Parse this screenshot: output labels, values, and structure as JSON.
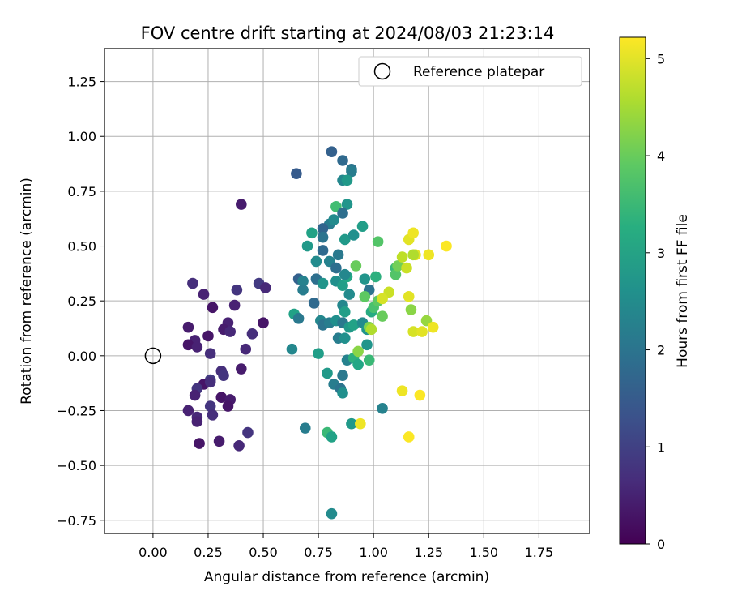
{
  "chart_data": {
    "type": "scatter",
    "title": "FOV centre drift starting at 2024/08/03 21:23:14",
    "xlabel": "Angular distance from reference (arcmin)",
    "ylabel": "Rotation from reference (arcmin)",
    "xlim": [
      -0.22,
      1.98
    ],
    "ylim": [
      -0.81,
      1.4
    ],
    "xticks": [
      "0.00",
      "0.25",
      "0.50",
      "0.75",
      "1.00",
      "1.25",
      "1.50",
      "1.75"
    ],
    "xtick_values": [
      0,
      0.25,
      0.5,
      0.75,
      1.0,
      1.25,
      1.5,
      1.75
    ],
    "yticks": [
      "−0.75",
      "−0.50",
      "−0.25",
      "0.00",
      "0.25",
      "0.50",
      "0.75",
      "1.00",
      "1.25"
    ],
    "ytick_values": [
      -0.75,
      -0.5,
      -0.25,
      0,
      0.25,
      0.5,
      0.75,
      1.0,
      1.25
    ],
    "grid": true,
    "legend": {
      "position": "top-right",
      "entries": [
        "Reference platepar"
      ]
    },
    "reference_point": {
      "x": 0.0,
      "y": 0.0
    },
    "colorbar": {
      "label": "Hours from first FF file",
      "range": [
        0,
        5.22
      ],
      "ticks": [
        "0",
        "1",
        "2",
        "3",
        "4",
        "5"
      ],
      "tick_values": [
        0,
        1,
        2,
        3,
        4,
        5
      ],
      "colormap": "viridis"
    },
    "series": [
      {
        "points": [
          {
            "x": 0.4,
            "y": 0.69,
            "c": 0.4
          },
          {
            "x": 0.18,
            "y": 0.33,
            "c": 0.7
          },
          {
            "x": 0.23,
            "y": 0.28,
            "c": 0.5
          },
          {
            "x": 0.38,
            "y": 0.3,
            "c": 0.8
          },
          {
            "x": 0.27,
            "y": 0.22,
            "c": 0.3
          },
          {
            "x": 0.37,
            "y": 0.23,
            "c": 0.5
          },
          {
            "x": 0.48,
            "y": 0.33,
            "c": 0.9
          },
          {
            "x": 0.51,
            "y": 0.31,
            "c": 0.6
          },
          {
            "x": 0.16,
            "y": 0.13,
            "c": 0.4
          },
          {
            "x": 0.34,
            "y": 0.15,
            "c": 0.5
          },
          {
            "x": 0.5,
            "y": 0.15,
            "c": 0.3
          },
          {
            "x": 0.19,
            "y": 0.07,
            "c": 0.5
          },
          {
            "x": 0.25,
            "y": 0.09,
            "c": 0.3
          },
          {
            "x": 0.32,
            "y": 0.12,
            "c": 0.4
          },
          {
            "x": 0.35,
            "y": 0.11,
            "c": 0.6
          },
          {
            "x": 0.45,
            "y": 0.1,
            "c": 0.7
          },
          {
            "x": 0.16,
            "y": 0.05,
            "c": 0.3
          },
          {
            "x": 0.2,
            "y": 0.04,
            "c": 0.5
          },
          {
            "x": 0.42,
            "y": 0.03,
            "c": 0.6
          },
          {
            "x": 0.26,
            "y": 0.01,
            "c": 0.7
          },
          {
            "x": 0.4,
            "y": -0.06,
            "c": 0.4
          },
          {
            "x": 0.31,
            "y": -0.07,
            "c": 0.7
          },
          {
            "x": 0.32,
            "y": -0.09,
            "c": 0.8
          },
          {
            "x": 0.26,
            "y": -0.11,
            "c": 0.9
          },
          {
            "x": 0.23,
            "y": -0.13,
            "c": 0.3
          },
          {
            "x": 0.26,
            "y": -0.12,
            "c": 0.7
          },
          {
            "x": 0.2,
            "y": -0.15,
            "c": 0.8
          },
          {
            "x": 0.19,
            "y": -0.18,
            "c": 0.5
          },
          {
            "x": 0.31,
            "y": -0.19,
            "c": 0.3
          },
          {
            "x": 0.35,
            "y": -0.2,
            "c": 0.4
          },
          {
            "x": 0.26,
            "y": -0.23,
            "c": 0.8
          },
          {
            "x": 0.34,
            "y": -0.23,
            "c": 0.3
          },
          {
            "x": 0.16,
            "y": -0.25,
            "c": 0.5
          },
          {
            "x": 0.27,
            "y": -0.27,
            "c": 0.7
          },
          {
            "x": 0.2,
            "y": -0.28,
            "c": 0.6
          },
          {
            "x": 0.2,
            "y": -0.3,
            "c": 0.5
          },
          {
            "x": 0.43,
            "y": -0.35,
            "c": 0.8
          },
          {
            "x": 0.21,
            "y": -0.4,
            "c": 0.3
          },
          {
            "x": 0.3,
            "y": -0.39,
            "c": 0.4
          },
          {
            "x": 0.39,
            "y": -0.41,
            "c": 0.6
          },
          {
            "x": 0.65,
            "y": 0.83,
            "c": 1.5
          },
          {
            "x": 0.81,
            "y": 0.93,
            "c": 1.6
          },
          {
            "x": 0.86,
            "y": 0.89,
            "c": 1.8
          },
          {
            "x": 0.9,
            "y": 0.85,
            "c": 2.0
          },
          {
            "x": 0.9,
            "y": 0.84,
            "c": 2.2
          },
          {
            "x": 0.86,
            "y": 0.8,
            "c": 2.4
          },
          {
            "x": 0.88,
            "y": 0.8,
            "c": 2.8
          },
          {
            "x": 0.83,
            "y": 0.68,
            "c": 3.6
          },
          {
            "x": 0.88,
            "y": 0.69,
            "c": 2.7
          },
          {
            "x": 0.86,
            "y": 0.65,
            "c": 1.9
          },
          {
            "x": 0.8,
            "y": 0.6,
            "c": 2.2
          },
          {
            "x": 0.82,
            "y": 0.62,
            "c": 2.5
          },
          {
            "x": 0.77,
            "y": 0.58,
            "c": 1.7
          },
          {
            "x": 0.72,
            "y": 0.56,
            "c": 3.0
          },
          {
            "x": 0.77,
            "y": 0.54,
            "c": 2.0
          },
          {
            "x": 0.87,
            "y": 0.53,
            "c": 2.8
          },
          {
            "x": 0.91,
            "y": 0.55,
            "c": 2.6
          },
          {
            "x": 0.95,
            "y": 0.59,
            "c": 2.9
          },
          {
            "x": 0.7,
            "y": 0.5,
            "c": 2.8
          },
          {
            "x": 0.77,
            "y": 0.48,
            "c": 1.8
          },
          {
            "x": 0.84,
            "y": 0.46,
            "c": 2.1
          },
          {
            "x": 0.74,
            "y": 0.43,
            "c": 2.5
          },
          {
            "x": 0.8,
            "y": 0.43,
            "c": 2.3
          },
          {
            "x": 0.83,
            "y": 0.4,
            "c": 1.9
          },
          {
            "x": 0.66,
            "y": 0.35,
            "c": 1.6
          },
          {
            "x": 0.68,
            "y": 0.34,
            "c": 2.3
          },
          {
            "x": 0.74,
            "y": 0.35,
            "c": 1.9
          },
          {
            "x": 0.77,
            "y": 0.33,
            "c": 2.7
          },
          {
            "x": 0.83,
            "y": 0.34,
            "c": 2.6
          },
          {
            "x": 0.86,
            "y": 0.32,
            "c": 2.9
          },
          {
            "x": 0.88,
            "y": 0.36,
            "c": 3.1
          },
          {
            "x": 0.87,
            "y": 0.37,
            "c": 2.4
          },
          {
            "x": 0.96,
            "y": 0.35,
            "c": 2.7
          },
          {
            "x": 0.68,
            "y": 0.3,
            "c": 2.2
          },
          {
            "x": 0.89,
            "y": 0.28,
            "c": 2.5
          },
          {
            "x": 0.98,
            "y": 0.3,
            "c": 2.0
          },
          {
            "x": 0.73,
            "y": 0.24,
            "c": 1.8
          },
          {
            "x": 0.64,
            "y": 0.19,
            "c": 3.0
          },
          {
            "x": 0.66,
            "y": 0.17,
            "c": 2.1
          },
          {
            "x": 0.76,
            "y": 0.16,
            "c": 2.4
          },
          {
            "x": 0.77,
            "y": 0.14,
            "c": 2.0
          },
          {
            "x": 0.8,
            "y": 0.15,
            "c": 2.2
          },
          {
            "x": 0.83,
            "y": 0.16,
            "c": 2.6
          },
          {
            "x": 0.86,
            "y": 0.23,
            "c": 2.4
          },
          {
            "x": 0.87,
            "y": 0.2,
            "c": 2.9
          },
          {
            "x": 0.86,
            "y": 0.15,
            "c": 2.1
          },
          {
            "x": 0.89,
            "y": 0.13,
            "c": 2.8
          },
          {
            "x": 0.91,
            "y": 0.14,
            "c": 3.0
          },
          {
            "x": 0.95,
            "y": 0.15,
            "c": 2.5
          },
          {
            "x": 0.97,
            "y": 0.12,
            "c": 2.7
          },
          {
            "x": 0.99,
            "y": 0.2,
            "c": 3.2
          },
          {
            "x": 0.84,
            "y": 0.08,
            "c": 2.2
          },
          {
            "x": 0.87,
            "y": 0.08,
            "c": 2.6
          },
          {
            "x": 0.63,
            "y": 0.03,
            "c": 2.4
          },
          {
            "x": 0.75,
            "y": 0.01,
            "c": 2.9
          },
          {
            "x": 0.97,
            "y": 0.05,
            "c": 2.7
          },
          {
            "x": 0.88,
            "y": -0.02,
            "c": 2.3
          },
          {
            "x": 0.91,
            "y": -0.01,
            "c": 3.3
          },
          {
            "x": 0.93,
            "y": -0.04,
            "c": 3.1
          },
          {
            "x": 0.98,
            "y": -0.02,
            "c": 3.5
          },
          {
            "x": 0.79,
            "y": -0.08,
            "c": 2.8
          },
          {
            "x": 0.86,
            "y": -0.09,
            "c": 2.1
          },
          {
            "x": 0.82,
            "y": -0.13,
            "c": 2.2
          },
          {
            "x": 0.85,
            "y": -0.15,
            "c": 2.0
          },
          {
            "x": 0.86,
            "y": -0.17,
            "c": 2.6
          },
          {
            "x": 0.69,
            "y": -0.33,
            "c": 2.2
          },
          {
            "x": 0.79,
            "y": -0.35,
            "c": 3.5
          },
          {
            "x": 0.81,
            "y": -0.37,
            "c": 3.0
          },
          {
            "x": 0.9,
            "y": -0.31,
            "c": 2.8
          },
          {
            "x": 1.04,
            "y": -0.24,
            "c": 2.3
          },
          {
            "x": 0.81,
            "y": -0.72,
            "c": 2.5
          },
          {
            "x": 1.02,
            "y": 0.52,
            "c": 3.8
          },
          {
            "x": 0.92,
            "y": 0.41,
            "c": 4.0
          },
          {
            "x": 1.0,
            "y": 0.22,
            "c": 3.7
          },
          {
            "x": 1.02,
            "y": 0.25,
            "c": 3.9
          },
          {
            "x": 1.04,
            "y": 0.18,
            "c": 4.0
          },
          {
            "x": 0.98,
            "y": 0.13,
            "c": 4.2
          },
          {
            "x": 1.01,
            "y": 0.36,
            "c": 3.3
          },
          {
            "x": 1.1,
            "y": 0.4,
            "c": 3.5
          },
          {
            "x": 1.1,
            "y": 0.37,
            "c": 3.8
          },
          {
            "x": 1.11,
            "y": 0.41,
            "c": 4.1
          },
          {
            "x": 0.93,
            "y": 0.02,
            "c": 4.3
          },
          {
            "x": 0.96,
            "y": 0.27,
            "c": 3.9
          },
          {
            "x": 1.07,
            "y": 0.29,
            "c": 4.8
          },
          {
            "x": 1.04,
            "y": 0.26,
            "c": 4.9
          },
          {
            "x": 1.13,
            "y": 0.45,
            "c": 4.7
          },
          {
            "x": 1.15,
            "y": 0.4,
            "c": 4.8
          },
          {
            "x": 1.16,
            "y": 0.53,
            "c": 5.0
          },
          {
            "x": 1.18,
            "y": 0.56,
            "c": 5.1
          },
          {
            "x": 1.19,
            "y": 0.46,
            "c": 5.0
          },
          {
            "x": 1.18,
            "y": 0.46,
            "c": 4.6
          },
          {
            "x": 1.25,
            "y": 0.46,
            "c": 5.1
          },
          {
            "x": 1.33,
            "y": 0.5,
            "c": 5.2
          },
          {
            "x": 1.16,
            "y": 0.27,
            "c": 5.0
          },
          {
            "x": 1.17,
            "y": 0.21,
            "c": 4.3
          },
          {
            "x": 1.24,
            "y": 0.16,
            "c": 4.4
          },
          {
            "x": 1.18,
            "y": 0.11,
            "c": 4.9
          },
          {
            "x": 1.22,
            "y": 0.11,
            "c": 5.0
          },
          {
            "x": 1.27,
            "y": 0.13,
            "c": 5.1
          },
          {
            "x": 0.99,
            "y": 0.12,
            "c": 4.6
          },
          {
            "x": 1.13,
            "y": -0.16,
            "c": 5.1
          },
          {
            "x": 1.21,
            "y": -0.18,
            "c": 5.2
          },
          {
            "x": 1.16,
            "y": -0.37,
            "c": 5.2
          },
          {
            "x": 0.94,
            "y": -0.31,
            "c": 5.1
          }
        ]
      }
    ]
  }
}
